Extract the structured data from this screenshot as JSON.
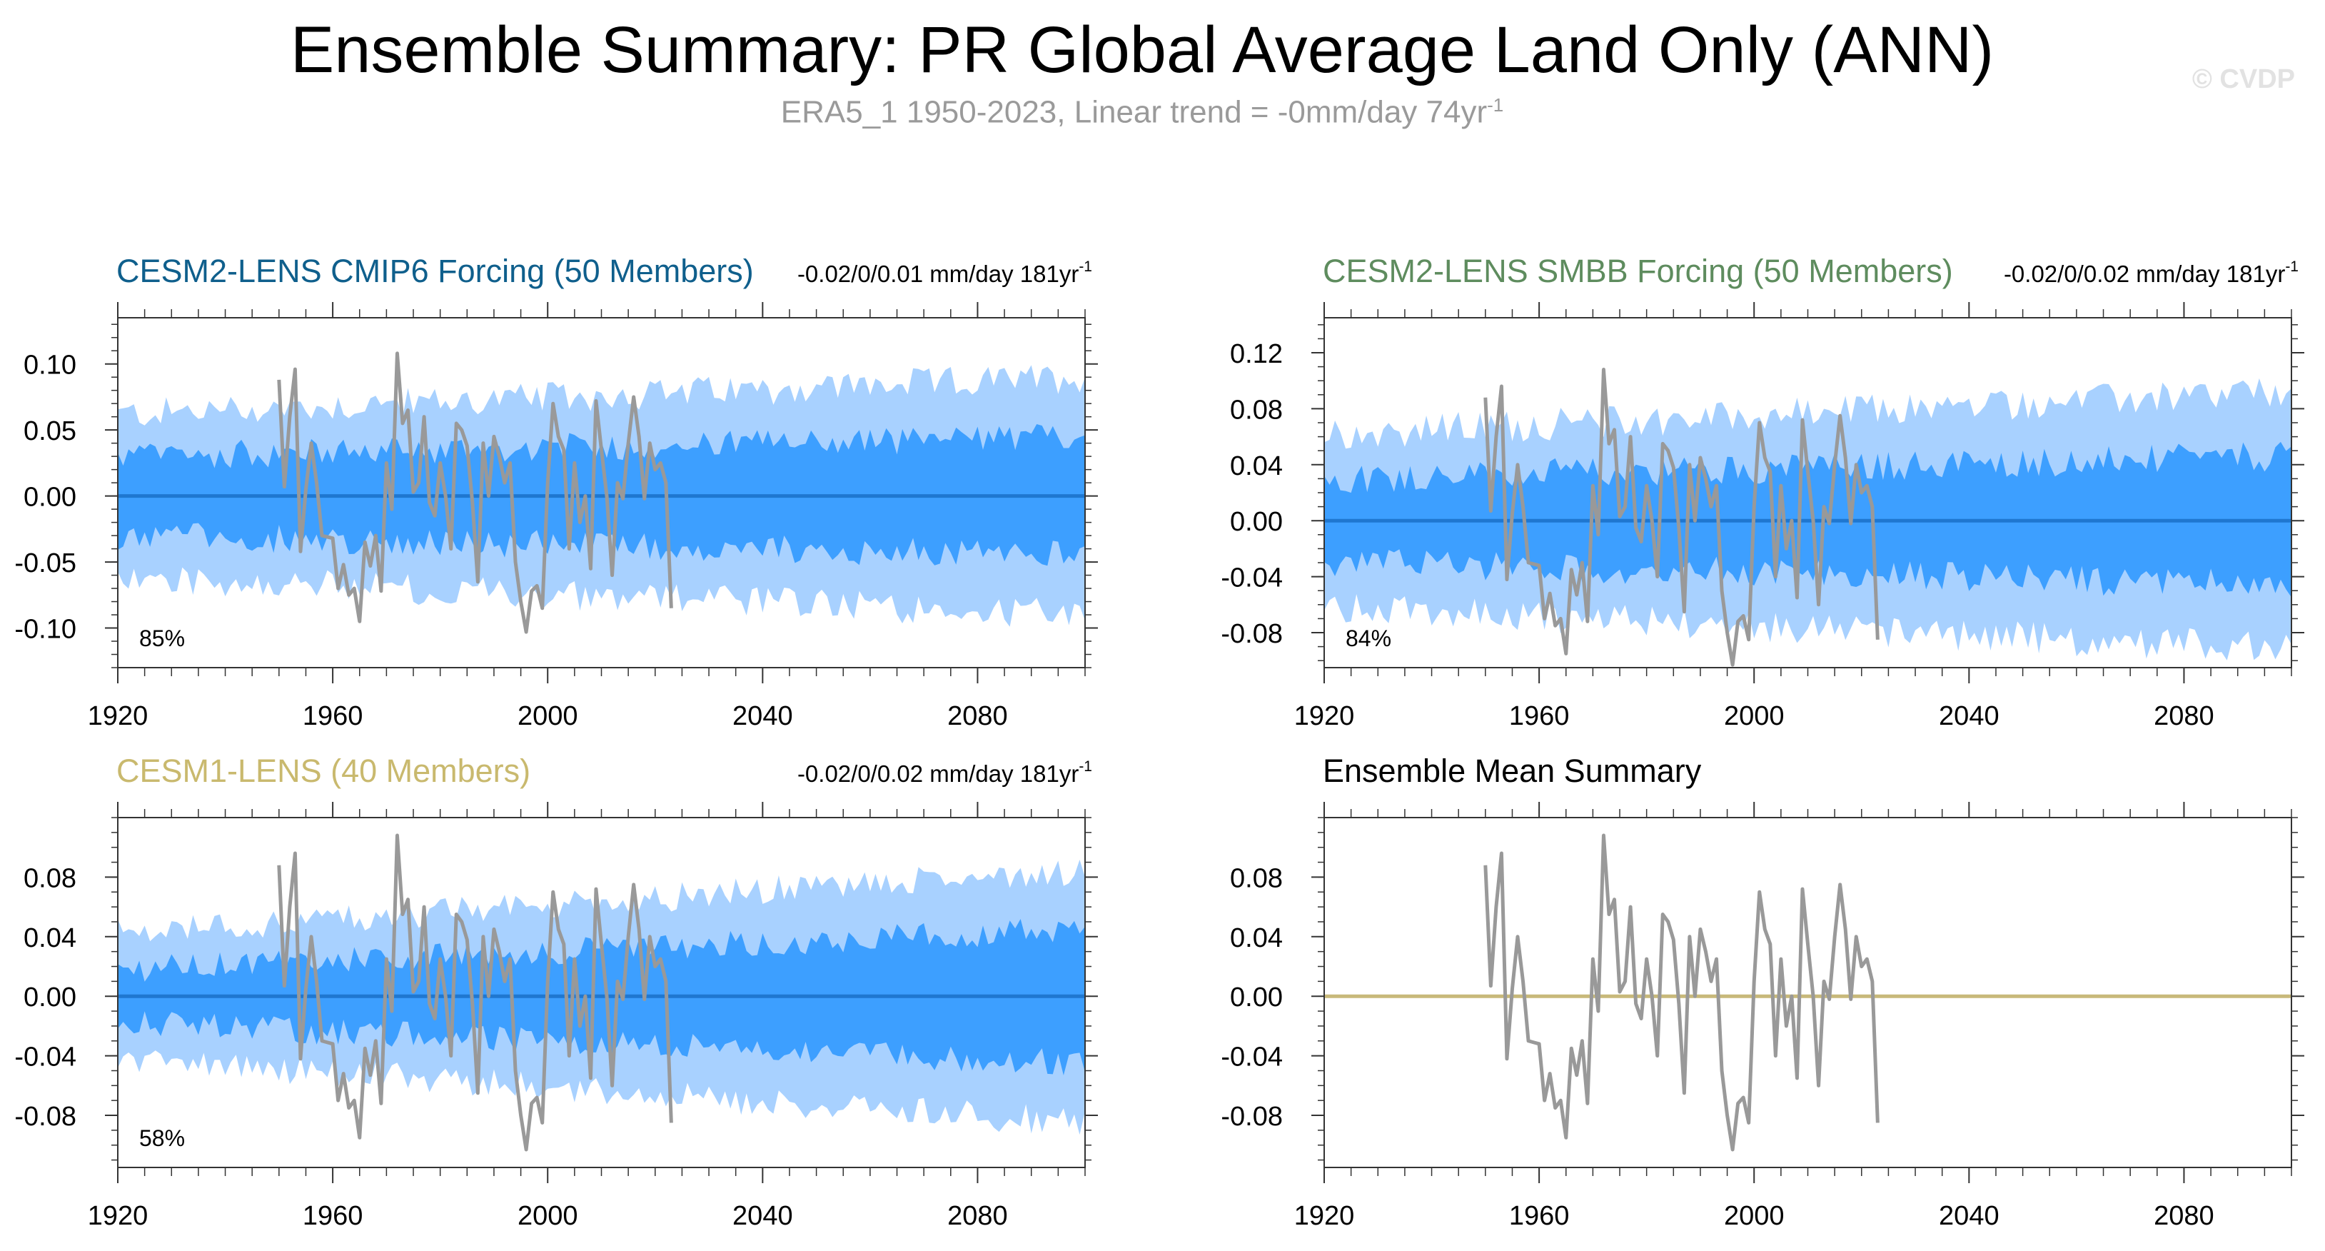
{
  "figure": {
    "title": "Ensemble Summary: PR Global Average Land Only (ANN)",
    "subtitle": "ERA5_1 1950-2023, Linear trend = -0mm/day 74yr",
    "subtitle_sup": "-1",
    "watermark": "© CVDP"
  },
  "colors": {
    "outer_band": "#a8d1ff",
    "inner_band": "#3d9fff",
    "mean_line_blue": "#1f77d0",
    "mean_line_tan": "#c8b97a",
    "obs_line": "#999999",
    "title_cmip6": "#0f5f8c",
    "title_smbb": "#5e8c5e",
    "title_cesm1": "#c9b96e",
    "title_summary": "#000000"
  },
  "chart_data": [
    {
      "id": "cmip6",
      "type": "area",
      "title": "CESM2-LENS CMIP6 Forcing (50 Members)",
      "title_color": "#0f5f8c",
      "trend": "-0.02/0/0.01 mm/day 181yr",
      "trend_sup": "-1",
      "percent": "85%",
      "xlim": [
        1920,
        2100
      ],
      "ylim": [
        -0.13,
        0.135
      ],
      "yticks": [
        -0.1,
        -0.05,
        0.0,
        0.05,
        0.1
      ],
      "ytick_labels": [
        "-0.10",
        "-0.05",
        "0.00",
        "0.05",
        "0.10"
      ],
      "ytick_minor_step": 0.01,
      "xticks": [
        1920,
        1960,
        2000,
        2040,
        2080
      ],
      "xtick_labels": [
        "1920",
        "1960",
        "2000",
        "2040",
        "2080"
      ],
      "band_outer_half_width": {
        "start": 0.062,
        "end": 0.09
      },
      "band_inner_half_width": {
        "start": 0.03,
        "end": 0.045
      },
      "band_noise": 0.012,
      "ensemble_mean": 0.0,
      "mean_line_color": "#1f77d0",
      "show_bands": true
    },
    {
      "id": "smbb",
      "type": "area",
      "title": "CESM2-LENS SMBB Forcing (50 Members)",
      "title_color": "#5e8c5e",
      "trend": "-0.02/0/0.02 mm/day 181yr",
      "trend_sup": "-1",
      "percent": "84%",
      "xlim": [
        1920,
        2100
      ],
      "ylim": [
        -0.105,
        0.145
      ],
      "yticks": [
        -0.08,
        -0.04,
        0.0,
        0.04,
        0.08,
        0.12
      ],
      "ytick_labels": [
        "-0.08",
        "-0.04",
        "0.00",
        "0.04",
        "0.08",
        "0.12"
      ],
      "ytick_minor_step": 0.01,
      "xticks": [
        1920,
        1960,
        2000,
        2040,
        2080
      ],
      "xtick_labels": [
        "1920",
        "1960",
        "2000",
        "2040",
        "2080"
      ],
      "band_outer_half_width": {
        "start": 0.062,
        "end": 0.092
      },
      "band_inner_half_width": {
        "start": 0.03,
        "end": 0.046
      },
      "band_noise": 0.012,
      "ensemble_mean": 0.0,
      "mean_line_color": "#1f77d0",
      "show_bands": true
    },
    {
      "id": "cesm1",
      "type": "area",
      "title": "CESM1-LENS (40 Members)",
      "title_color": "#c9b96e",
      "trend": "-0.02/0/0.02 mm/day 181yr",
      "trend_sup": "-1",
      "percent": "58%",
      "xlim": [
        1920,
        2100
      ],
      "ylim": [
        -0.115,
        0.12
      ],
      "yticks": [
        -0.08,
        -0.04,
        0.0,
        0.04,
        0.08
      ],
      "ytick_labels": [
        "-0.08",
        "-0.04",
        "0.00",
        "0.04",
        "0.08"
      ],
      "ytick_minor_step": 0.01,
      "xticks": [
        1920,
        1960,
        2000,
        2040,
        2080
      ],
      "xtick_labels": [
        "1920",
        "1960",
        "2000",
        "2040",
        "2080"
      ],
      "band_outer_half_width": {
        "start": 0.042,
        "end": 0.085
      },
      "band_inner_half_width": {
        "start": 0.018,
        "end": 0.045
      },
      "band_noise": 0.01,
      "ensemble_mean": 0.0,
      "mean_line_color": "#1f77d0",
      "show_bands": true
    },
    {
      "id": "summary",
      "type": "line",
      "title": "Ensemble Mean Summary",
      "title_color": "#000000",
      "trend": "",
      "trend_sup": "",
      "percent": "",
      "xlim": [
        1920,
        2100
      ],
      "ylim": [
        -0.115,
        0.12
      ],
      "yticks": [
        -0.08,
        -0.04,
        0.0,
        0.04,
        0.08
      ],
      "ytick_labels": [
        "-0.08",
        "-0.04",
        "0.00",
        "0.04",
        "0.08"
      ],
      "ytick_minor_step": 0.01,
      "xticks": [
        1920,
        1960,
        2000,
        2040,
        2080
      ],
      "xtick_labels": [
        "1920",
        "1960",
        "2000",
        "2040",
        "2080"
      ],
      "ensemble_mean": 0.0,
      "mean_line_color": "#c8b97a",
      "show_bands": false
    }
  ],
  "observations": {
    "name": "ERA5_1",
    "years": [
      1950,
      1951,
      1952,
      1953,
      1954,
      1955,
      1956,
      1957,
      1958,
      1959,
      1960,
      1961,
      1962,
      1963,
      1964,
      1965,
      1966,
      1967,
      1968,
      1969,
      1970,
      1971,
      1972,
      1973,
      1974,
      1975,
      1976,
      1977,
      1978,
      1979,
      1980,
      1981,
      1982,
      1983,
      1984,
      1985,
      1986,
      1987,
      1988,
      1989,
      1990,
      1991,
      1992,
      1993,
      1994,
      1995,
      1996,
      1997,
      1998,
      1999,
      2000,
      2001,
      2002,
      2003,
      2004,
      2005,
      2006,
      2007,
      2008,
      2009,
      2010,
      2011,
      2012,
      2013,
      2014,
      2015,
      2016,
      2017,
      2018,
      2019,
      2020,
      2021,
      2022,
      2023
    ],
    "values": [
      0.088,
      0.007,
      0.06,
      0.096,
      -0.042,
      0.005,
      0.04,
      0.01,
      -0.03,
      -0.031,
      -0.032,
      -0.07,
      -0.052,
      -0.075,
      -0.07,
      -0.095,
      -0.035,
      -0.053,
      -0.03,
      -0.072,
      0.025,
      -0.01,
      0.108,
      0.055,
      0.065,
      0.003,
      0.01,
      0.06,
      -0.005,
      -0.015,
      0.025,
      0.0,
      -0.04,
      0.055,
      0.05,
      0.038,
      -0.005,
      -0.065,
      0.04,
      0.0,
      0.045,
      0.03,
      0.01,
      0.025,
      -0.05,
      -0.08,
      -0.103,
      -0.072,
      -0.068,
      -0.085,
      0.01,
      0.07,
      0.045,
      0.035,
      -0.04,
      0.025,
      -0.02,
      0.0,
      -0.055,
      0.072,
      0.035,
      0.0,
      -0.06,
      0.01,
      -0.002,
      0.04,
      0.075,
      0.045,
      -0.002,
      0.04,
      0.02,
      0.025,
      0.01,
      -0.085
    ]
  }
}
